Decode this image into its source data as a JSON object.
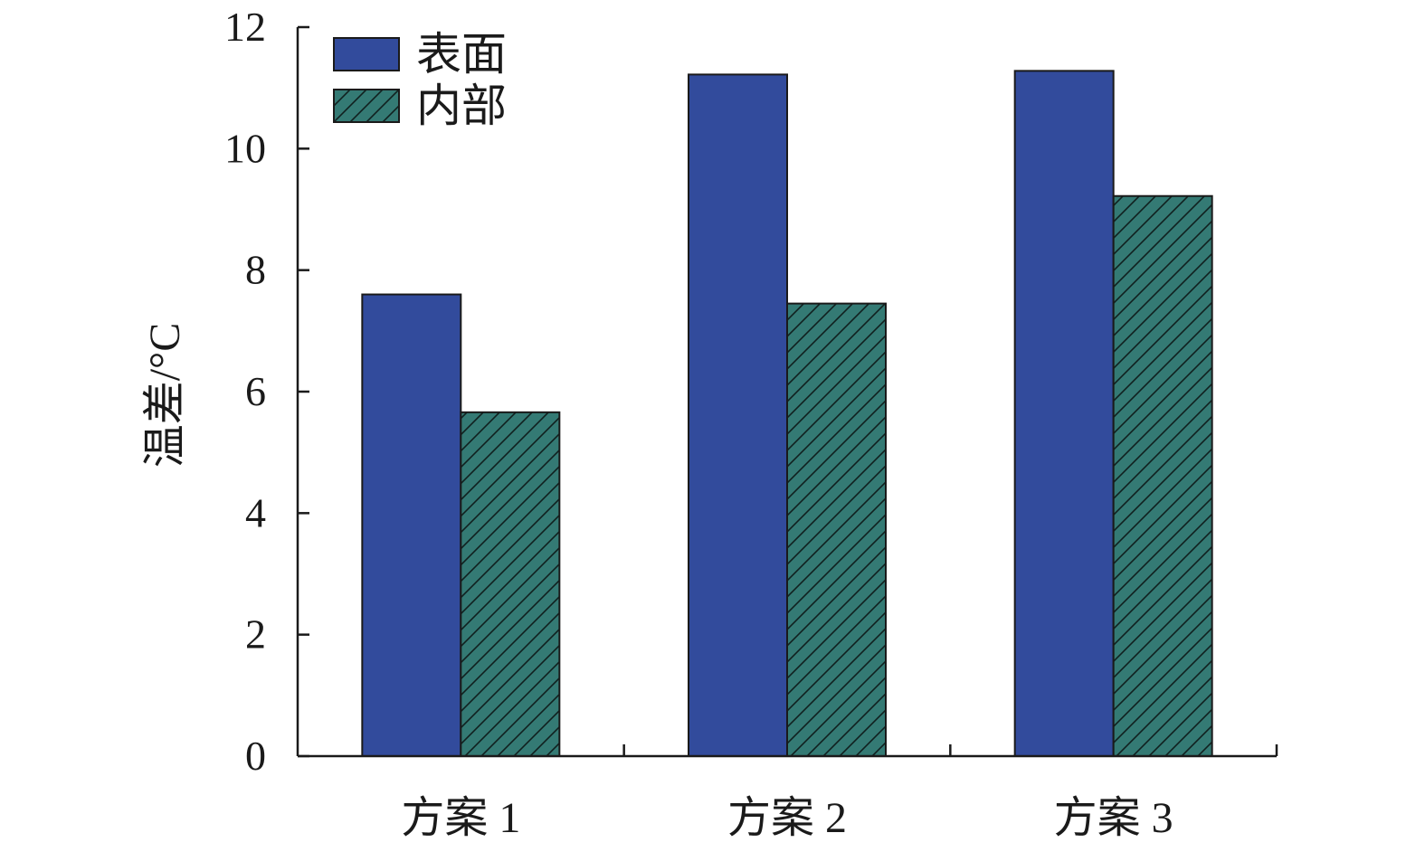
{
  "chart_data": {
    "type": "bar",
    "categories": [
      "方案 1",
      "方案 2",
      "方案 3"
    ],
    "series": [
      {
        "name": "表面",
        "values": [
          7.6,
          11.22,
          11.28
        ],
        "color": "#324b9c",
        "pattern": "solid"
      },
      {
        "name": "内部",
        "values": [
          5.66,
          7.45,
          9.22
        ],
        "color": "#347a74",
        "pattern": "diagonal-hatch"
      }
    ],
    "ylabel": "温差/°C",
    "xlabel": "",
    "ylim": [
      0,
      12
    ],
    "yticks": [
      0,
      2,
      4,
      6,
      8,
      10,
      12
    ],
    "grid": false,
    "legend_position": "top-left"
  }
}
